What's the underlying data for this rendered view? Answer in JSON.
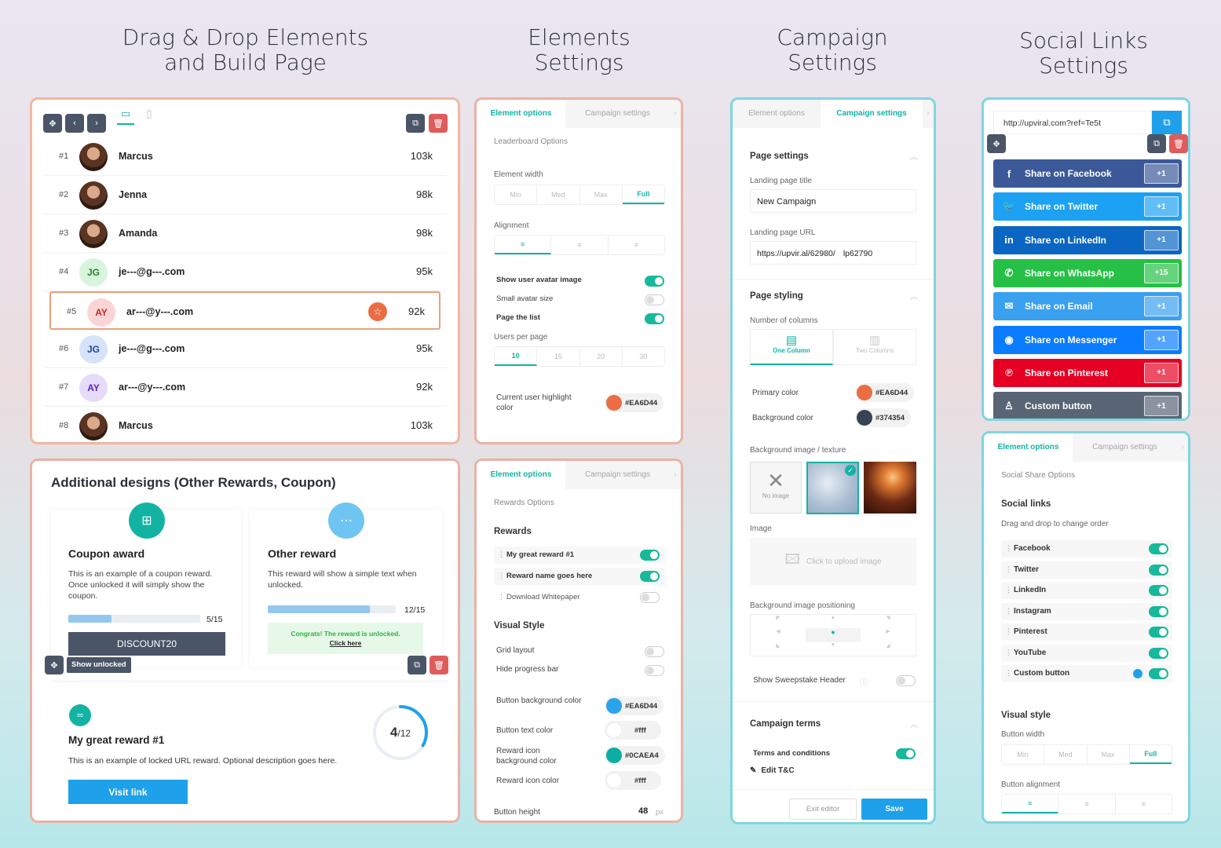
{
  "headings": {
    "drag": "Drag & Drop Elements and Build Page",
    "elements": "Elements Settings",
    "campaign": "Campaign Settings",
    "social": "Social Links Settings"
  },
  "leaderboard": {
    "rows": [
      {
        "rank": "#1",
        "name": "Marcus",
        "score": "103k",
        "initials": "",
        "photo": true
      },
      {
        "rank": "#2",
        "name": "Jenna",
        "score": "98k",
        "initials": "",
        "photo": true
      },
      {
        "rank": "#3",
        "name": "Amanda",
        "score": "98k",
        "initials": "",
        "photo": true
      },
      {
        "rank": "#4",
        "name": "je---@g---.com",
        "score": "95k",
        "initials": "JG",
        "bg": "#d6f5dc",
        "fg": "#2e7d32"
      },
      {
        "rank": "#5",
        "name": "ar---@y---.com",
        "score": "92k",
        "initials": "AY",
        "bg": "#fbd5d5",
        "fg": "#c62828"
      },
      {
        "rank": "#6",
        "name": "je---@g---.com",
        "score": "95k",
        "initials": "JG",
        "bg": "#d5e3fb",
        "fg": "#1e40af"
      },
      {
        "rank": "#7",
        "name": "ar---@y---.com",
        "score": "92k",
        "initials": "AY",
        "bg": "#e6dcf9",
        "fg": "#5b21b6"
      },
      {
        "rank": "#8",
        "name": "Marcus",
        "score": "103k",
        "initials": "",
        "photo": true
      }
    ]
  },
  "rewards_card": {
    "title": "Additional designs (Other Rewards, Coupon)",
    "coupon": {
      "title": "Coupon award",
      "desc": "This is an example of a coupon reward. Once unlocked it will simply show the coupon.",
      "progress": "5/15",
      "progress_value": 0.33,
      "code": "DISCOUNT20"
    },
    "other": {
      "title": "Other reward",
      "desc": "This reward will show a simple text when unlocked.",
      "progress": "12/15",
      "progress_value": 0.8,
      "msg": "Congrats! The reward is unlocked.",
      "link": "Click here"
    },
    "show_unlocked": "Show unlocked",
    "locked": {
      "title": "My great reward #1",
      "desc": "This is an example of locked URL reward. Optional description goes here.",
      "button": "Visit link",
      "count": "4",
      "total": "/12",
      "progress_value": 0.333
    }
  },
  "tabs": {
    "element": "Element options",
    "campaign": "Campaign settings"
  },
  "leaderboard_options": {
    "section": "Leaderboard Options",
    "width_label": "Element width",
    "width_opts": [
      "Min",
      "Med",
      "Max",
      "Full"
    ],
    "align_label": "Alignment",
    "show_avatar": "Show user avatar image",
    "small_avatar": "Small avatar size",
    "page_list": "Page the list",
    "users_per_page": "Users per page",
    "per_page_opts": [
      "10",
      "15",
      "20",
      "30"
    ],
    "highlight": "Current user highlight color",
    "highlight_color": "#EA6D44"
  },
  "rewards_options": {
    "section": "Rewards Options",
    "rewards": "Rewards",
    "items": [
      "My great reward #1",
      "Reward name goes here",
      "Download Whitepaper"
    ],
    "visual": "Visual Style",
    "grid": "Grid layout",
    "hide_progress": "Hide progress bar",
    "btn_bg": "Button background color",
    "btn_bg_color": "#EA6D44",
    "btn_text": "Button text color",
    "btn_text_color": "#fff",
    "icon_bg": "Reward icon background color",
    "icon_bg_color": "#0CAEA4",
    "icon_color": "Reward icon color",
    "icon_color_val": "#fff",
    "btn_height": "Button height",
    "btn_height_val": "48",
    "px": "px"
  },
  "campaign_settings": {
    "page_settings": "Page settings",
    "title_label": "Landing page title",
    "title_val": "New Campaign",
    "url_label": "Landing page URL",
    "url_val": "https://upvir.al/62980/",
    "url_suffix": "lp62790",
    "styling": "Page styling",
    "cols_label": "Number of columns",
    "one": "One Column",
    "two": "Two Columns",
    "primary": "Primary color",
    "primary_val": "#EA6D44",
    "bg": "Background color",
    "bg_val": "#374354",
    "texture": "Background image / texture",
    "noimg": "No image",
    "image": "Image",
    "upload": "Click to upload image",
    "positioning": "Background image positioning",
    "sweep": "Show Sweepstake Header",
    "terms": "Campaign terms",
    "tc": "Terms and conditions",
    "edit": "Edit T&C",
    "exit": "Exit editor",
    "save": "Save"
  },
  "social": {
    "url": "http://upviral.com?ref=Te5t",
    "buttons": [
      {
        "label": "Share on Facebook",
        "count": "+1",
        "color": "#3b5998",
        "icon": "f"
      },
      {
        "label": "Share on Twitter",
        "count": "+1",
        "color": "#1da1f2",
        "icon": "🐦"
      },
      {
        "label": "Share on LinkedIn",
        "count": "+1",
        "color": "#0a66c2",
        "icon": "in"
      },
      {
        "label": "Share on WhatsApp",
        "count": "+15",
        "color": "#25c045",
        "icon": "✆"
      },
      {
        "label": "Share on Email",
        "count": "+1",
        "color": "#3aa0f0",
        "icon": "✉"
      },
      {
        "label": "Share on Messenger",
        "count": "+1",
        "color": "#0a7cff",
        "icon": "◉"
      },
      {
        "label": "Share on Pinterest",
        "count": "+1",
        "color": "#e60023",
        "icon": "℗"
      },
      {
        "label": "Custom button",
        "count": "+1",
        "color": "#596575",
        "icon": "♙"
      }
    ]
  },
  "social_options": {
    "section": "Social Share Options",
    "links": "Social links",
    "hint": "Drag and drop to change order",
    "items": [
      "Facebook",
      "Twitter",
      "LinkedIn",
      "Instagram",
      "Pinterest",
      "YouTube",
      "Custom button"
    ],
    "visual": "Visual style",
    "width": "Button width",
    "width_opts": [
      "Min",
      "Med",
      "Max",
      "Full"
    ],
    "align": "Button alignment"
  }
}
